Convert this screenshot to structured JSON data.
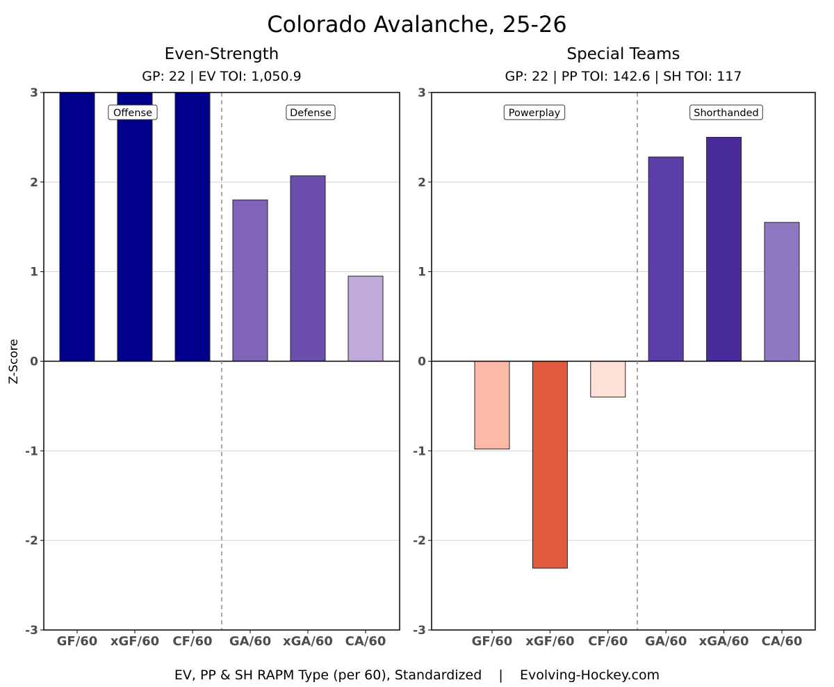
{
  "chart_data": {
    "title": "Colorado Avalanche, 25-26",
    "footer": "EV, PP & SH RAPM Type (per 60), Standardized    |    Evolving-Hockey.com",
    "ylabel": "Z-Score",
    "ylim": [
      -3,
      3
    ],
    "yticks": [
      "3",
      "2",
      "1",
      "0",
      "-1",
      "-2",
      "-3"
    ],
    "grid": true,
    "panels": [
      {
        "type": "bar",
        "title": "Even-Strength",
        "subtitle": "GP: 22 | EV TOI: 1,050.9",
        "groups": [
          "Offense",
          "Defense"
        ],
        "categories": [
          "GF/60",
          "xGF/60",
          "CF/60",
          "GA/60",
          "xGA/60",
          "CA/60"
        ],
        "values": [
          3,
          3,
          3,
          1.8,
          2.07,
          0.95
        ],
        "colors": [
          "#00008b",
          "#00008b",
          "#00008b",
          "#8064b9",
          "#6c4fad",
          "#bfaadb"
        ]
      },
      {
        "type": "bar",
        "title": "Special Teams",
        "subtitle": "GP: 22 | PP TOI: 142.6 | SH TOI: 117",
        "groups": [
          "Powerplay",
          "Shorthanded"
        ],
        "categories": [
          "GF/60",
          "xGF/60",
          "CF/60",
          "GA/60",
          "xGA/60",
          "CA/60"
        ],
        "values": [
          -0.98,
          -2.31,
          -0.4,
          2.28,
          2.5,
          1.55
        ],
        "colors": [
          "#fcb9a8",
          "#e05a3e",
          "#fee0d6",
          "#5b3ea6",
          "#4a2b9b",
          "#8f77c2"
        ]
      }
    ]
  }
}
